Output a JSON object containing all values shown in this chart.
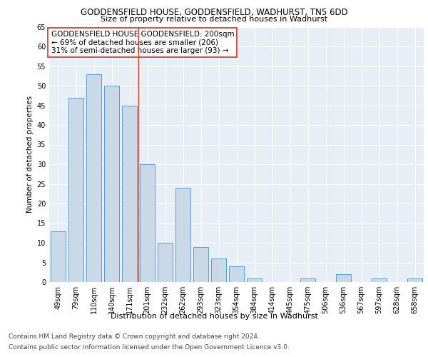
{
  "title1": "GODDENSFIELD HOUSE, GODDENSFIELD, WADHURST, TN5 6DD",
  "title2": "Size of property relative to detached houses in Wadhurst",
  "xlabel": "Distribution of detached houses by size in Wadhurst",
  "ylabel": "Number of detached properties",
  "footnote1": "Contains HM Land Registry data © Crown copyright and database right 2024.",
  "footnote2": "Contains public sector information licensed under the Open Government Licence v3.0.",
  "annotation_line1": "GODDENSFIELD HOUSE GODDENSFIELD: 200sqm",
  "annotation_line2": "← 69% of detached houses are smaller (206)",
  "annotation_line3": "31% of semi-detached houses are larger (93) →",
  "bar_labels": [
    "49sqm",
    "79sqm",
    "110sqm",
    "140sqm",
    "171sqm",
    "201sqm",
    "232sqm",
    "262sqm",
    "293sqm",
    "323sqm",
    "354sqm",
    "384sqm",
    "414sqm",
    "445sqm",
    "475sqm",
    "506sqm",
    "536sqm",
    "567sqm",
    "597sqm",
    "628sqm",
    "658sqm"
  ],
  "bar_values": [
    13,
    47,
    53,
    50,
    45,
    30,
    10,
    24,
    9,
    6,
    4,
    1,
    0,
    0,
    1,
    0,
    2,
    0,
    1,
    0,
    1
  ],
  "bar_color": "#c9d9e8",
  "bar_edge_color": "#5b9bd5",
  "vline_color": "#c0392b",
  "vline_pos": 4.5,
  "ylim": [
    0,
    65
  ],
  "yticks": [
    0,
    5,
    10,
    15,
    20,
    25,
    30,
    35,
    40,
    45,
    50,
    55,
    60,
    65
  ],
  "bg_color": "#e8eef5",
  "fig_bg_color": "#ffffff",
  "annotation_box_edge": "#c0392b",
  "title1_fontsize": 8.5,
  "title2_fontsize": 8.0,
  "ylabel_fontsize": 7.5,
  "xlabel_fontsize": 8.0,
  "tick_fontsize": 7.0,
  "footnote_fontsize": 6.5,
  "ann_fontsize": 7.5
}
